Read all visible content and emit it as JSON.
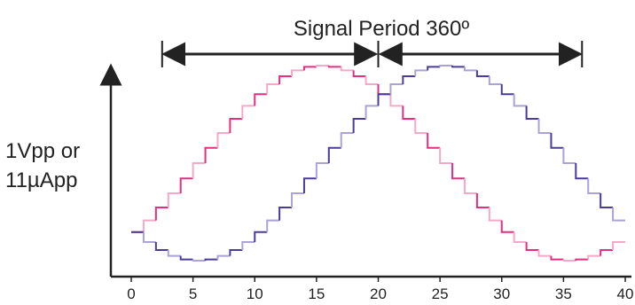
{
  "chart_data": {
    "type": "line",
    "title": "Signal Period 360º",
    "ylabel_lines": [
      "1Vpp or",
      "11µApp"
    ],
    "xlim": [
      0,
      40
    ],
    "x_ticks": [
      "0",
      "5",
      "10",
      "15",
      "20",
      "25",
      "30",
      "35",
      "40"
    ],
    "period_span": [
      2.5,
      36.5
    ],
    "period_split": 20,
    "steps_per_unit": 1,
    "series": [
      {
        "color": "#e0307f",
        "light_color": "#f4a9c9",
        "peak_x": 15
      },
      {
        "color": "#4a3c99",
        "light_color": "#aaa4d6",
        "peak_x": 25
      }
    ],
    "grid": false
  }
}
